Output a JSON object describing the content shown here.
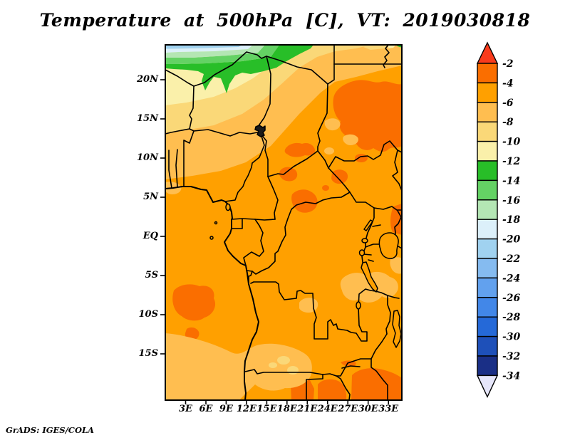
{
  "title": "Temperature at 500hPa [C], VT: 2019030818",
  "attribution": "GrADS: IGES/COLA",
  "map": {
    "x_ticks": [
      "3E",
      "6E",
      "9E",
      "12E",
      "15E",
      "18E",
      "21E",
      "24E",
      "27E",
      "30E",
      "33E"
    ],
    "y_ticks": [
      "20N",
      "15N",
      "10N",
      "5N",
      "EQ",
      "5S",
      "10S",
      "15S"
    ]
  },
  "colorbar": {
    "labels": [
      "-2",
      "-4",
      "-6",
      "-8",
      "-10",
      "-12",
      "-14",
      "-16",
      "-18",
      "-20",
      "-22",
      "-24",
      "-26",
      "-28",
      "-30",
      "-32",
      "-34"
    ],
    "segment_colors": [
      "#fa6e00",
      "#ffa000",
      "#ffbe50",
      "#fad878",
      "#faf0aa",
      "#28be28",
      "#64d264",
      "#b4e6b4",
      "#dcf0fa",
      "#a0d2f0",
      "#85bbf0",
      "#62a1ee",
      "#4287e8",
      "#2569d8",
      "#1e50b9",
      "#1a2f86"
    ],
    "above_color": "#f93b1c",
    "below_color": "#e6e6fa"
  },
  "palette": {
    "m2": "#fa6e00",
    "m4": "#ffa000",
    "lo": "#ffbe50",
    "dy": "#fad878",
    "py": "#faf0aa",
    "g1": "#28be28",
    "g2": "#64d264",
    "g3": "#b4e6b4",
    "b2": "#dcf0fa",
    "b1": "#a0d2f0",
    "ink": "#000000",
    "lake": "#1a1a1a"
  },
  "chart_data": {
    "type": "heatmap",
    "subtype": "filled_contour_map",
    "title": "Temperature at 500hPa [C], VT: 2019030818",
    "variable": "Temperature",
    "pressure_level": "500hPa",
    "units": "C",
    "valid_time": "2019030818",
    "region": "Central Africa",
    "lon_range": [
      "0E",
      "35E"
    ],
    "lat_range": [
      "21S",
      "24.5N"
    ],
    "x_tick_labels": [
      "3E",
      "6E",
      "9E",
      "12E",
      "15E",
      "18E",
      "21E",
      "24E",
      "27E",
      "30E",
      "33E"
    ],
    "y_tick_labels": [
      "20N",
      "15N",
      "10N",
      "5N",
      "EQ",
      "5S",
      "10S",
      "15S"
    ],
    "contour_interval": 2,
    "levels": [
      -34,
      -32,
      -30,
      -28,
      -26,
      -24,
      -22,
      -20,
      -18,
      -16,
      -14,
      -12,
      -10,
      -8,
      -6,
      -4,
      -2
    ],
    "legend_position": "right vertical colorbar with arrow caps",
    "grid": "off",
    "field_features": [
      {
        "area": "northwest corner (Sahara, W of 12E, N of 20N)",
        "value": "-10 to -22, banded: pale blue strip at top edge, green band -12 to -18 near 21-23N, pale yellow -10 to -12 below"
      },
      {
        "area": "Sahel band 9E-35E along top",
        "value": "-6 to -10"
      },
      {
        "area": "most of domain (equatorial Africa)",
        "value": "-4 to -6"
      },
      {
        "area": "NE Chad / N Sudan (24E-35E, 13N-18N)",
        "value": "-2 to -4 warm pool"
      },
      {
        "area": "scattered patches N CAR and NE DRC (17E-26E, 3N-10N)",
        "value": "-2 to -4"
      },
      {
        "area": "right edge near 30-35E, 3N-4N",
        "value": "-2 to -4"
      },
      {
        "area": "SE Atlantic off Angola (1E-8E, 7S-11S)",
        "value": "-2 to -4 blob"
      },
      {
        "area": "southern edge Zimbabwe/Mozambique (18E-35E, 16S-20S)",
        "value": "-2 to -4 patches"
      },
      {
        "area": "SW corner ocean and Angola interior (0E-22E, 13S-20S)",
        "value": "-6 to -8 with small -8 to -10 spots"
      },
      {
        "area": "Tanzania/SE DRC patches (26E-35E, 3S-7S)",
        "value": "-6 to -8"
      }
    ]
  }
}
